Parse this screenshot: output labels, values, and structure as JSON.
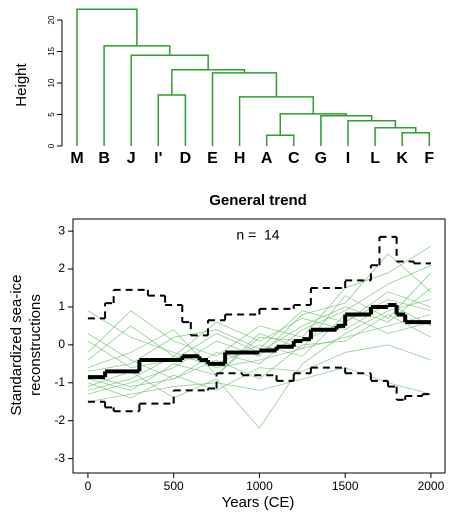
{
  "chart_data": [
    {
      "type": "dendrogram",
      "y_label": "Height",
      "leaves": [
        "M",
        "B",
        "J",
        "I'",
        "D",
        "E",
        "H",
        "A",
        "C",
        "G",
        "I",
        "L",
        "K",
        "F"
      ],
      "merges": [
        {
          "pair": [
            -8,
            -9
          ],
          "height": 1.7
        },
        {
          "pair": [
            -13,
            -14
          ],
          "height": 2.1
        },
        {
          "pair": [
            -12,
            2
          ],
          "height": 2.9
        },
        {
          "pair": [
            -11,
            3
          ],
          "height": 4.0
        },
        {
          "pair": [
            -10,
            4
          ],
          "height": 4.8
        },
        {
          "pair": [
            1,
            5
          ],
          "height": 5.1
        },
        {
          "pair": [
            -7,
            6
          ],
          "height": 7.8
        },
        {
          "pair": [
            -4,
            -5
          ],
          "height": 8.1
        },
        {
          "pair": [
            -6,
            7
          ],
          "height": 11.6
        },
        {
          "pair": [
            8,
            9
          ],
          "height": 12.1
        },
        {
          "pair": [
            -3,
            10
          ],
          "height": 14.4
        },
        {
          "pair": [
            -2,
            11
          ],
          "height": 15.9
        },
        {
          "pair": [
            -1,
            12
          ],
          "height": 21.7
        }
      ],
      "color": "#2e9e2e",
      "ylim": [
        0,
        22
      ],
      "yticks": [
        0,
        5,
        10,
        15,
        20
      ]
    },
    {
      "type": "line",
      "title": "General trend",
      "annotation": "n =  14",
      "x_label": "Years (CE)",
      "y_label": [
        "Standardized sea-ice",
        "reconstructions"
      ],
      "xlim": [
        -87,
        2082
      ],
      "ylim": [
        -3.38,
        3.32
      ],
      "xticks": [
        0,
        500,
        1000,
        1500,
        2000
      ],
      "yticks": [
        -3,
        -2,
        -1,
        0,
        1,
        2,
        3
      ],
      "proxy_color": "#6cc16c",
      "proxy_x": [
        0,
        250,
        500,
        750,
        1000,
        1250,
        1500,
        1750,
        2000
      ],
      "proxies": [
        [
          -0.9,
          -1.2,
          -0.5,
          -0.8,
          0.2,
          0.1,
          0.6,
          1.2,
          0.9
        ],
        [
          0.3,
          -0.4,
          -0.9,
          -0.2,
          -0.5,
          0.4,
          0.9,
          1.6,
          2.1
        ],
        [
          -1.3,
          -1.0,
          -0.6,
          0.1,
          -0.3,
          0.8,
          1.1,
          2.4,
          1.4
        ],
        [
          -0.6,
          -0.2,
          0.4,
          -0.8,
          0.3,
          -0.1,
          1.3,
          0.7,
          1.9
        ],
        [
          -1.5,
          -1.3,
          -1.1,
          -1.0,
          -1.2,
          -0.9,
          -0.6,
          -1.0,
          -1.3
        ],
        [
          -0.4,
          0.5,
          -0.3,
          0.6,
          0.1,
          0.7,
          0.4,
          1.1,
          0.5
        ],
        [
          0.9,
          0.2,
          -0.2,
          -0.6,
          -0.4,
          -0.1,
          0.2,
          0.5,
          0.8
        ],
        [
          -1.1,
          -0.7,
          -1.4,
          -0.9,
          -2.2,
          -0.5,
          0.3,
          0.9,
          1.2
        ],
        [
          -0.2,
          0.9,
          0.1,
          -0.3,
          0.5,
          0.2,
          1.5,
          1.9,
          2.6
        ],
        [
          -1.0,
          -1.4,
          -0.8,
          -1.2,
          -0.6,
          -0.7,
          -0.2,
          0.0,
          -0.4
        ],
        [
          -0.7,
          -0.5,
          0.2,
          0.4,
          -0.1,
          0.9,
          0.6,
          1.4,
          1.0
        ],
        [
          -1.2,
          -0.9,
          -0.3,
          -0.5,
          0.0,
          -0.3,
          0.8,
          0.3,
          0.6
        ],
        [
          0.1,
          -0.6,
          -0.4,
          0.3,
          -0.2,
          0.5,
          1.0,
          0.6,
          1.5
        ],
        [
          -0.8,
          -1.1,
          -0.9,
          -0.4,
          -0.9,
          0.0,
          0.1,
          0.8,
          0.2
        ]
      ],
      "steps": [
        {
          "style": "solid",
          "width": 4,
          "x": [
            0,
            100,
            300,
            550,
            650,
            700,
            800,
            1000,
            1100,
            1200,
            1250,
            1300,
            1450,
            1500,
            1650,
            1750,
            1800,
            1850,
            2000
          ],
          "values": [
            -0.85,
            -0.7,
            -0.4,
            -0.3,
            -0.4,
            -0.5,
            -0.2,
            -0.15,
            -0.05,
            0.1,
            0.15,
            0.4,
            0.5,
            0.8,
            1.0,
            1.05,
            0.8,
            0.6,
            0.6
          ]
        },
        {
          "style": "dashed",
          "width": 2,
          "x": [
            0,
            100,
            150,
            350,
            450,
            550,
            600,
            700,
            800,
            1000,
            1200,
            1300,
            1500,
            1650,
            1700,
            1800,
            1900,
            2000
          ],
          "values": [
            0.7,
            1.1,
            1.45,
            1.3,
            1.05,
            0.6,
            0.25,
            0.65,
            0.8,
            0.95,
            1.05,
            1.5,
            1.7,
            2.1,
            2.85,
            2.2,
            2.15,
            2.15
          ]
        },
        {
          "style": "dashed",
          "width": 2,
          "x": [
            0,
            100,
            150,
            300,
            500,
            700,
            750,
            900,
            1100,
            1200,
            1300,
            1500,
            1650,
            1750,
            1800,
            1850,
            1950,
            2000
          ],
          "values": [
            -1.5,
            -1.65,
            -1.75,
            -1.55,
            -1.2,
            -1.15,
            -0.75,
            -0.8,
            -0.95,
            -0.75,
            -0.6,
            -0.75,
            -0.95,
            -1.1,
            -1.45,
            -1.35,
            -1.3,
            -1.3
          ]
        }
      ]
    }
  ]
}
